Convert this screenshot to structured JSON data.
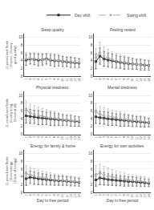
{
  "chart_data": [
    {
      "type": "line",
      "title": "Sleep quality",
      "ylabel": "11-point Likert Scale\n(0=poor, 10=very\ngood quality)",
      "x": [
        1,
        2,
        3,
        4,
        5,
        6,
        7,
        8,
        9,
        10,
        11,
        12,
        13,
        14
      ],
      "xlim": [
        0.5,
        14.5
      ],
      "xticks": [
        1,
        2,
        3,
        4,
        5,
        6,
        7,
        8,
        9,
        10,
        11,
        12,
        13,
        14
      ],
      "ylim": [
        0,
        11
      ],
      "yticks": [
        0,
        2,
        4,
        6,
        8,
        10
      ],
      "grid": "y",
      "series": [
        {
          "name": "Day shift",
          "color": "#222222",
          "marker": "square",
          "line_style": "solid",
          "values": [
            4.2,
            4.5,
            4.4,
            4.2,
            4.3,
            4.5,
            4.2,
            4.0,
            4.0,
            3.8,
            3.7,
            3.6,
            3.5,
            3.4
          ],
          "errors": [
            1.4,
            1.3,
            1.4,
            1.5,
            1.4,
            1.3,
            1.4,
            1.5,
            1.4,
            1.3,
            1.2,
            1.3,
            1.2,
            1.1
          ]
        },
        {
          "name": "Swing shift",
          "color": "#aaaaaa",
          "marker": "diamond",
          "line_style": "dashed",
          "values": [
            4.5,
            4.6,
            4.5,
            4.4,
            4.3,
            4.4,
            4.3,
            4.2,
            4.1,
            3.9,
            3.8,
            3.7,
            3.6,
            3.5
          ],
          "errors": [
            1.6,
            1.5,
            1.6,
            1.7,
            1.6,
            1.5,
            1.6,
            1.6,
            1.5,
            1.4,
            1.3,
            1.4,
            1.3,
            1.2
          ]
        }
      ]
    },
    {
      "type": "line",
      "title": "Feeling rested",
      "legend": "upper right",
      "x": [
        1,
        2,
        3,
        4,
        5,
        6,
        7,
        8,
        9,
        10,
        11,
        12,
        13,
        14
      ],
      "xlim": [
        0.5,
        14.5
      ],
      "xticks": [
        1,
        2,
        3,
        4,
        5,
        6,
        7,
        8,
        9,
        10,
        11,
        12,
        13,
        14
      ],
      "ylim": [
        0,
        11
      ],
      "yticks": [
        0,
        2,
        4,
        6,
        8,
        10
      ],
      "grid": "y",
      "series": [
        {
          "name": "Day shift",
          "color": "#222222",
          "marker": "square",
          "line_style": "solid",
          "values": [
            3.8,
            5.2,
            4.5,
            4.2,
            4.0,
            3.8,
            3.6,
            3.4,
            3.3,
            3.2,
            3.1,
            3.0,
            2.9,
            2.8
          ],
          "errors": [
            1.9,
            2.1,
            1.9,
            1.8,
            1.7,
            1.6,
            1.5,
            1.6,
            1.5,
            1.4,
            1.3,
            1.4,
            1.3,
            1.2
          ]
        },
        {
          "name": "Swing shift",
          "color": "#aaaaaa",
          "marker": "diamond",
          "line_style": "dashed",
          "values": [
            4.8,
            6.2,
            5.2,
            4.8,
            4.3,
            4.0,
            3.8,
            3.6,
            3.4,
            3.2,
            3.1,
            3.0,
            2.9,
            2.8
          ],
          "errors": [
            2.4,
            2.6,
            2.4,
            2.2,
            2.1,
            1.9,
            1.8,
            1.7,
            1.6,
            1.5,
            1.4,
            1.5,
            1.4,
            1.3
          ]
        }
      ]
    },
    {
      "type": "line",
      "title": "Physical tiredness",
      "ylabel": "11-point Likert Scale\n(0=very tiring,\n10=not at all)",
      "x": [
        1,
        2,
        3,
        4,
        5,
        6,
        7,
        8,
        9,
        10,
        11,
        12,
        13,
        14
      ],
      "xlim": [
        0.5,
        14.5
      ],
      "xticks": [
        1,
        2,
        3,
        4,
        5,
        6,
        7,
        8,
        9,
        10,
        11,
        12,
        13,
        14
      ],
      "ylim": [
        0,
        11
      ],
      "yticks": [
        0,
        2,
        4,
        6,
        8,
        10
      ],
      "grid": "y",
      "series": [
        {
          "name": "Day shift",
          "color": "#222222",
          "marker": "square",
          "line_style": "solid",
          "values": [
            4.8,
            4.6,
            4.5,
            4.3,
            4.2,
            4.1,
            4.0,
            3.9,
            3.8,
            3.7,
            3.6,
            3.5,
            3.4,
            3.3
          ],
          "errors": [
            1.9,
            1.8,
            1.7,
            1.8,
            1.7,
            1.6,
            1.7,
            1.6,
            1.5,
            1.4,
            1.3,
            1.4,
            1.3,
            1.2
          ]
        },
        {
          "name": "Swing shift",
          "color": "#aaaaaa",
          "marker": "diamond",
          "line_style": "dashed",
          "values": [
            6.2,
            5.5,
            5.2,
            4.9,
            4.7,
            4.5,
            4.3,
            4.2,
            4.0,
            3.8,
            3.7,
            3.6,
            3.5,
            3.4
          ],
          "errors": [
            2.4,
            2.3,
            2.2,
            2.1,
            2.0,
            1.9,
            1.8,
            1.7,
            1.6,
            1.5,
            1.4,
            1.4,
            1.3,
            1.2
          ]
        }
      ]
    },
    {
      "type": "line",
      "title": "Mental tiredness",
      "x": [
        1,
        2,
        3,
        4,
        5,
        6,
        7,
        8,
        9,
        10,
        11,
        12,
        13,
        14
      ],
      "xlim": [
        0.5,
        14.5
      ],
      "xticks": [
        1,
        2,
        3,
        4,
        5,
        6,
        7,
        8,
        9,
        10,
        11,
        12,
        13,
        14
      ],
      "ylim": [
        0,
        11
      ],
      "yticks": [
        0,
        2,
        4,
        6,
        8,
        10
      ],
      "grid": "y",
      "series": [
        {
          "name": "Day shift",
          "color": "#222222",
          "marker": "square",
          "line_style": "solid",
          "values": [
            4.5,
            4.3,
            4.2,
            4.0,
            3.9,
            3.8,
            3.7,
            3.6,
            3.5,
            3.4,
            3.3,
            3.2,
            3.1,
            3.0
          ],
          "errors": [
            1.7,
            1.6,
            1.6,
            1.7,
            1.6,
            1.5,
            1.6,
            1.5,
            1.4,
            1.4,
            1.3,
            1.3,
            1.2,
            1.1
          ]
        },
        {
          "name": "Swing shift",
          "color": "#aaaaaa",
          "marker": "diamond",
          "line_style": "dashed",
          "values": [
            5.8,
            5.2,
            4.9,
            4.7,
            4.5,
            4.3,
            4.1,
            3.9,
            3.7,
            3.6,
            3.5,
            3.4,
            3.3,
            3.1
          ],
          "errors": [
            2.2,
            2.1,
            2.0,
            1.9,
            1.8,
            1.7,
            1.7,
            1.6,
            1.5,
            1.5,
            1.4,
            1.4,
            1.3,
            1.2
          ]
        }
      ]
    },
    {
      "type": "line",
      "title": "Energy for family & home",
      "xlabel": "Day in free period",
      "ylabel": "11-point Likert Scale\n(0=no energy,\n10=lots of energy)",
      "x": [
        1,
        2,
        3,
        4,
        5,
        6,
        7,
        8,
        9,
        10,
        11,
        12,
        13,
        14
      ],
      "xlim": [
        0.5,
        14.5
      ],
      "xticks": [
        1,
        2,
        3,
        4,
        5,
        6,
        7,
        8,
        9,
        10,
        11,
        12,
        13,
        14
      ],
      "ylim": [
        0,
        11
      ],
      "yticks": [
        0,
        2,
        4,
        6,
        8,
        10
      ],
      "grid": "y",
      "series": [
        {
          "name": "Day shift",
          "color": "#222222",
          "marker": "square",
          "line_style": "solid",
          "values": [
            3.5,
            3.9,
            3.7,
            3.5,
            3.4,
            3.3,
            3.2,
            3.1,
            3.0,
            3.0,
            2.9,
            2.8,
            2.7,
            2.6
          ],
          "errors": [
            1.7,
            1.6,
            1.6,
            1.5,
            1.4,
            1.4,
            1.3,
            1.3,
            1.2,
            1.2,
            1.1,
            1.1,
            1.0,
            1.0
          ]
        },
        {
          "name": "Swing shift",
          "color": "#aaaaaa",
          "marker": "diamond",
          "line_style": "dashed",
          "values": [
            4.8,
            4.5,
            4.2,
            4.0,
            3.8,
            3.6,
            3.5,
            3.3,
            3.2,
            3.1,
            3.0,
            2.9,
            2.8,
            2.7
          ],
          "errors": [
            2.1,
            2.0,
            1.9,
            1.8,
            1.7,
            1.6,
            1.6,
            1.5,
            1.4,
            1.4,
            1.3,
            1.3,
            1.2,
            1.1
          ]
        }
      ]
    },
    {
      "type": "line",
      "title": "Energy for own activities",
      "xlabel": "Day in free period",
      "x": [
        1,
        2,
        3,
        4,
        5,
        6,
        7,
        8,
        9,
        10,
        11,
        12,
        13,
        14
      ],
      "xlim": [
        0.5,
        14.5
      ],
      "xticks": [
        1,
        2,
        3,
        4,
        5,
        6,
        7,
        8,
        9,
        10,
        11,
        12,
        13,
        14
      ],
      "ylim": [
        0,
        11
      ],
      "yticks": [
        0,
        2,
        4,
        6,
        8,
        10
      ],
      "grid": "y",
      "series": [
        {
          "name": "Day shift",
          "color": "#222222",
          "marker": "square",
          "line_style": "solid",
          "values": [
            3.2,
            3.7,
            3.5,
            3.3,
            3.2,
            3.1,
            3.0,
            2.9,
            2.8,
            2.8,
            2.7,
            2.6,
            2.5,
            2.4
          ],
          "errors": [
            1.6,
            1.7,
            1.6,
            1.5,
            1.4,
            1.4,
            1.3,
            1.3,
            1.2,
            1.2,
            1.1,
            1.1,
            1.0,
            0.9
          ]
        },
        {
          "name": "Swing shift",
          "color": "#aaaaaa",
          "marker": "diamond",
          "line_style": "dashed",
          "values": [
            4.5,
            5.0,
            4.5,
            4.2,
            4.0,
            3.8,
            3.6,
            3.4,
            3.2,
            3.1,
            3.0,
            2.9,
            2.8,
            2.6
          ],
          "errors": [
            2.4,
            2.3,
            2.2,
            2.1,
            1.9,
            1.8,
            1.7,
            1.6,
            1.5,
            1.4,
            1.3,
            1.3,
            1.2,
            1.1
          ]
        }
      ]
    }
  ]
}
